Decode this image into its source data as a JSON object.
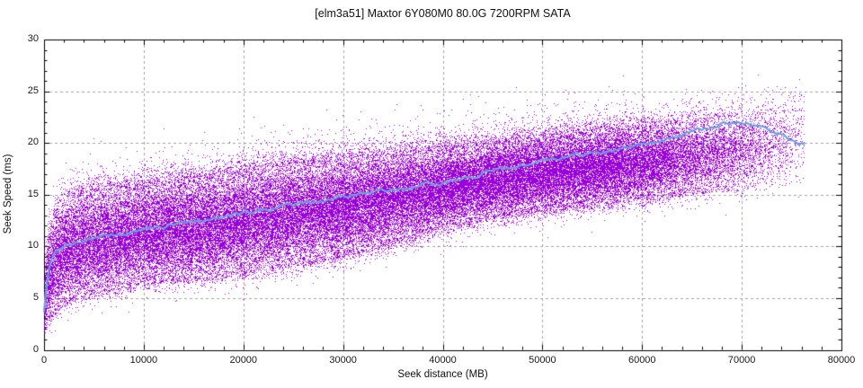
{
  "chart_data": {
    "type": "scatter",
    "title": "[elm3a51] Maxtor 6Y080M0 80.0G 7200RPM SATA",
    "xlabel": "Seek distance (MB)",
    "ylabel": "Seek Speed (ms)",
    "xlim": [
      0,
      80000
    ],
    "ylim": [
      0,
      30
    ],
    "x_ticks": [
      0,
      10000,
      20000,
      30000,
      40000,
      50000,
      60000,
      70000,
      80000
    ],
    "x_tick_labels": [
      "0",
      "10000",
      "20000",
      "30000",
      "40000",
      "50000",
      "60000",
      "70000",
      "80000"
    ],
    "y_ticks": [
      0,
      5,
      10,
      15,
      20,
      25,
      30
    ],
    "y_tick_labels": [
      "0",
      "5",
      "10",
      "15",
      "20",
      "25",
      "30"
    ],
    "x_minor_step": 2000,
    "y_minor_step": 1,
    "grid": {
      "style": "dashed",
      "color": "#a2a2a2",
      "on_major_ticks": true
    },
    "legend": "none",
    "background": "#ffffff",
    "axis_color": "#000000",
    "text_color": "#1a1a1a",
    "series": [
      {
        "name": "seek-samples",
        "kind": "dense-scatter-cloud",
        "marker": "1px-dot",
        "color": "#9902db",
        "x_max": 76300,
        "approx_point_count": 90000,
        "outlier_fraction": 0.075,
        "band": {
          "x": [
            0,
            400,
            1000,
            2000,
            3000,
            4500,
            6500,
            10000,
            15000,
            20000,
            25000,
            30000,
            35000,
            40000,
            45000,
            50000,
            55000,
            60000,
            65000,
            70000,
            76300
          ],
          "y_low": [
            2.0,
            3.0,
            3.8,
            4.7,
            5.1,
            5.5,
            5.9,
            6.6,
            7.0,
            7.6,
            8.3,
            9.2,
            10.4,
            11.9,
            12.8,
            13.5,
            14.1,
            14.6,
            15.2,
            15.8,
            16.6
          ],
          "y_high": [
            6.5,
            11.0,
            13.2,
            14.6,
            15.0,
            15.3,
            15.6,
            16.1,
            16.7,
            17.4,
            18.0,
            18.5,
            19.0,
            19.5,
            20.1,
            20.7,
            21.2,
            21.7,
            22.3,
            23.0,
            24.0
          ]
        },
        "density_fade": {
          "x": [
            0,
            56000,
            62000,
            66000,
            70000,
            73000,
            76300
          ],
          "density": [
            1.0,
            1.0,
            0.75,
            0.5,
            0.32,
            0.18,
            0.07
          ]
        }
      },
      {
        "name": "mean-seek-speed",
        "kind": "line",
        "color": "#5e96d2",
        "highlight_color": "#8ab4e4",
        "x": [
          0,
          200,
          500,
          1000,
          1800,
          3000,
          5000,
          8000,
          10000,
          12500,
          15000,
          20000,
          25000,
          30000,
          36000,
          40000,
          45000,
          50000,
          55000,
          60000,
          63000,
          66000,
          69000,
          71000,
          73000,
          76300
        ],
        "y": [
          3.8,
          5.8,
          7.8,
          9.4,
          10.1,
          10.4,
          10.8,
          11.2,
          11.6,
          12.0,
          12.4,
          13.2,
          14.0,
          14.8,
          15.5,
          16.2,
          17.3,
          18.2,
          19.0,
          19.9,
          20.6,
          21.3,
          22.0,
          21.8,
          21.0,
          19.9
        ]
      }
    ]
  }
}
